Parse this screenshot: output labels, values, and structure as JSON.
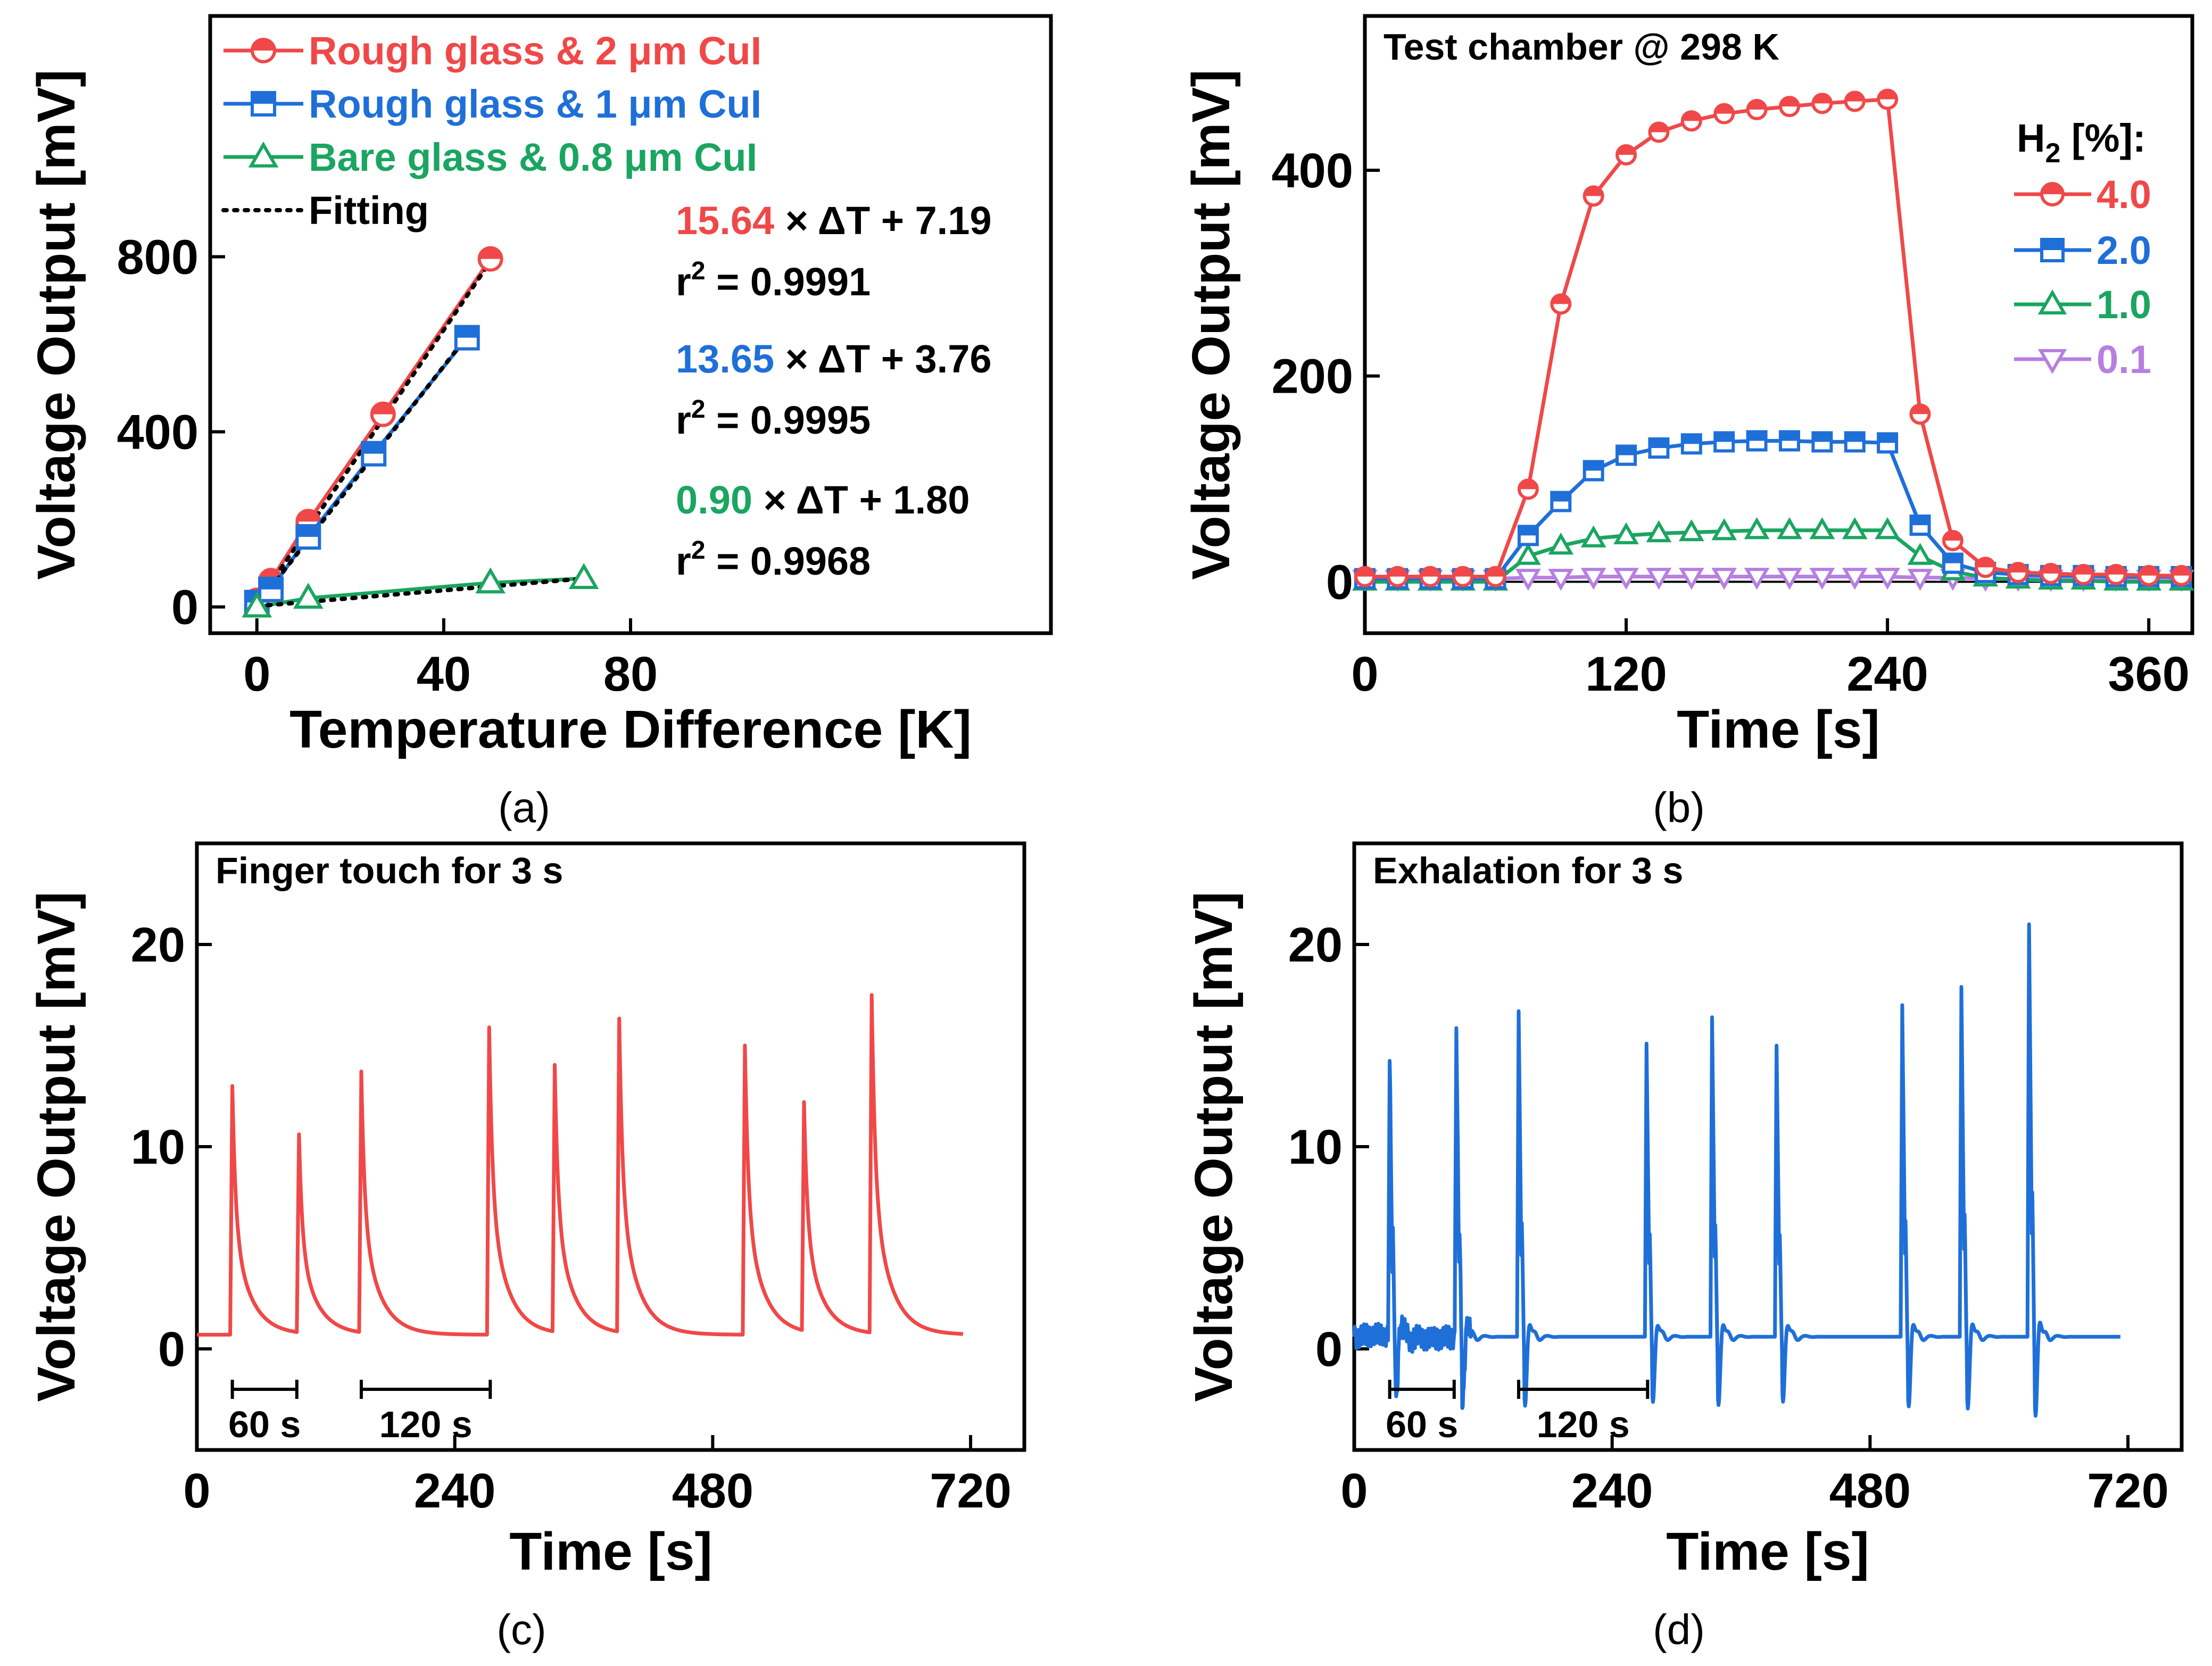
{
  "figure": {
    "panels": [
      {
        "id": "a",
        "caption": "(a)"
      },
      {
        "id": "b",
        "caption": "(b)"
      },
      {
        "id": "c",
        "caption": "(c)"
      },
      {
        "id": "d",
        "caption": "(d)"
      }
    ]
  },
  "colors": {
    "red": "#F04848",
    "blue": "#1F6FD8",
    "green": "#1AA560",
    "violet": "#B77FE0",
    "black": "#000000"
  },
  "chart_data": [
    {
      "panel": "a",
      "type": "scatter",
      "xlabel": "Temperature Difference [K]",
      "ylabel": "Voltage Output [mV]",
      "xlim": [
        -10,
        170
      ],
      "ylim": [
        -60,
        1350
      ],
      "xticks": [
        0,
        40,
        80
      ],
      "yticks": [
        0,
        400,
        800
      ],
      "series": [
        {
          "name": "Rough glass & 2 μm CuI",
          "color": "#F04848",
          "marker": "circle",
          "x": [
            0,
            3,
            11,
            27,
            50
          ],
          "y": [
            15,
            60,
            195,
            440,
            795
          ],
          "fit": {
            "slope": 15.64,
            "intercept": 7.19,
            "x": [
              0,
              50
            ]
          }
        },
        {
          "name": "Rough glass & 1 μm CuI",
          "color": "#1F6FD8",
          "marker": "square",
          "x": [
            0,
            3,
            11,
            25,
            45
          ],
          "y": [
            10,
            40,
            160,
            350,
            615
          ],
          "fit": {
            "slope": 13.65,
            "intercept": 3.76,
            "x": [
              0,
              45
            ]
          }
        },
        {
          "name": "Bare glass & 0.8 μm CuI",
          "color": "#1AA560",
          "marker": "triangle",
          "x": [
            0,
            11,
            50,
            70
          ],
          "y": [
            0,
            20,
            55,
            65
          ],
          "fit": {
            "slope": 0.9,
            "intercept": 1.8,
            "x": [
              0,
              70
            ]
          }
        }
      ],
      "fitting_label": "Fitting",
      "equations": [
        {
          "slope": "15.64",
          "rest": "× ΔT + 7.19",
          "r2_prefix": "r",
          "r2_sup": "2",
          "r2_value": "= 0.9991",
          "color": "#F04848"
        },
        {
          "slope": "13.65",
          "rest": "× ΔT + 3.76",
          "r2_prefix": "r",
          "r2_sup": "2",
          "r2_value": "= 0.9995",
          "color": "#1F6FD8"
        },
        {
          "slope": "0.90",
          "rest": "× ΔT + 1.80",
          "r2_prefix": "r",
          "r2_sup": "2",
          "r2_value": "= 0.9968",
          "color": "#1AA560"
        }
      ]
    },
    {
      "panel": "b",
      "type": "line",
      "xlabel": "Time [s]",
      "ylabel": "Voltage Output [mV]",
      "title": "Test chamber @ 298 K",
      "legend_title": "H",
      "legend_title_sub": "2",
      "legend_title_rest": " [%]:",
      "xlim": [
        0,
        380
      ],
      "ylim": [
        -50,
        550
      ],
      "xticks": [
        0,
        120,
        240,
        360
      ],
      "yticks": [
        0,
        200,
        400
      ],
      "x": [
        0,
        15,
        30,
        45,
        60,
        75,
        90,
        105,
        120,
        135,
        150,
        165,
        180,
        195,
        210,
        225,
        240,
        255,
        270,
        285,
        300,
        315,
        330,
        345,
        360,
        375
      ],
      "series": [
        {
          "name": "4.0",
          "color": "#F04848",
          "marker": "circle",
          "values": [
            5,
            5,
            5,
            5,
            5,
            90,
            270,
            375,
            415,
            437,
            448,
            455,
            459,
            462,
            465,
            467,
            469,
            163,
            40,
            14,
            9,
            8,
            7,
            7,
            6,
            6
          ]
        },
        {
          "name": "2.0",
          "color": "#1F6FD8",
          "marker": "square",
          "values": [
            3,
            3,
            3,
            3,
            3,
            45,
            78,
            108,
            123,
            130,
            134,
            136,
            137,
            137,
            136,
            136,
            135,
            55,
            18,
            9,
            7,
            6,
            6,
            5,
            5,
            5
          ]
        },
        {
          "name": "1.0",
          "color": "#1AA560",
          "marker": "triangle",
          "values": [
            0,
            0,
            0,
            0,
            0,
            25,
            35,
            42,
            45,
            47,
            48,
            49,
            50,
            50,
            50,
            50,
            50,
            25,
            10,
            4,
            2,
            1,
            1,
            0,
            0,
            0
          ]
        },
        {
          "name": "0.1",
          "color": "#B77FE0",
          "marker": "triangle-down",
          "values": [
            3,
            3,
            3,
            3,
            3,
            4,
            4,
            5,
            5,
            5,
            5,
            5,
            5,
            5,
            5,
            5,
            5,
            4,
            4,
            3,
            3,
            3,
            3,
            3,
            3,
            3
          ]
        }
      ]
    },
    {
      "panel": "c",
      "type": "line",
      "xlabel": "Time [s]",
      "ylabel": "Voltage Output [mV]",
      "title": "Finger touch for 3 s",
      "color": "#F04848",
      "xlim": [
        0,
        770
      ],
      "ylim": [
        -5,
        25
      ],
      "xticks": [
        0,
        240,
        480,
        720
      ],
      "yticks": [
        0,
        10,
        20
      ],
      "baseline": 0.7,
      "peaks": [
        {
          "t": 33,
          "v": 13.0
        },
        {
          "t": 95,
          "v": 10.5
        },
        {
          "t": 153,
          "v": 13.6
        },
        {
          "t": 272,
          "v": 15.9
        },
        {
          "t": 333,
          "v": 13.9
        },
        {
          "t": 393,
          "v": 16.2
        },
        {
          "t": 510,
          "v": 15.0
        },
        {
          "t": 565,
          "v": 12.0
        },
        {
          "t": 628,
          "v": 17.4
        }
      ],
      "t_end": 713,
      "scale_bars": [
        {
          "label": "60 s",
          "x": [
            33,
            93
          ]
        },
        {
          "label": "120 s",
          "x": [
            153,
            273
          ]
        }
      ]
    },
    {
      "panel": "d",
      "type": "line",
      "xlabel": "Time [s]",
      "ylabel": "Voltage Output [mV]",
      "title": "Exhalation for 3 s",
      "color": "#1F6FD8",
      "xlim": [
        0,
        770
      ],
      "ylim": [
        -5,
        25
      ],
      "xticks": [
        0,
        240,
        480,
        720
      ],
      "yticks": [
        0,
        10,
        20
      ],
      "baseline": 0.6,
      "peaks": [
        {
          "t": 33,
          "v": 14.3
        },
        {
          "t": 95,
          "v": 16.1
        },
        {
          "t": 153,
          "v": 16.7
        },
        {
          "t": 272,
          "v": 15.1
        },
        {
          "t": 333,
          "v": 16.4
        },
        {
          "t": 393,
          "v": 15.0
        },
        {
          "t": 510,
          "v": 17.0
        },
        {
          "t": 565,
          "v": 17.9
        },
        {
          "t": 628,
          "v": 21.0
        }
      ],
      "t_end": 713,
      "scale_bars": [
        {
          "label": "60 s",
          "x": [
            33,
            93
          ]
        },
        {
          "label": "120 s",
          "x": [
            153,
            273
          ]
        }
      ]
    }
  ]
}
